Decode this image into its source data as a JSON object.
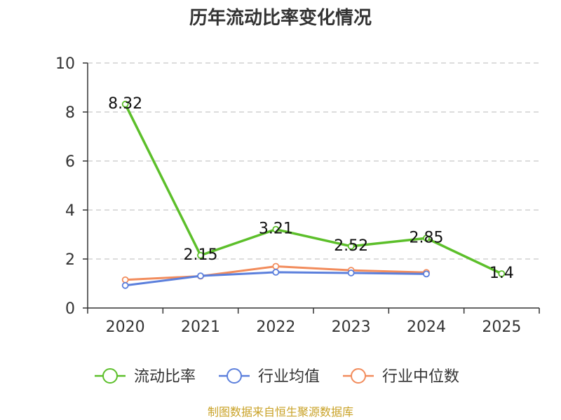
{
  "chart_data": {
    "type": "line",
    "title": "历年流动比率变化情况",
    "categories": [
      "2020",
      "2021",
      "2022",
      "2023",
      "2024",
      "2025"
    ],
    "ylim": [
      0,
      10
    ],
    "yticks": [
      0,
      2,
      4,
      6,
      8,
      10
    ],
    "grid": true,
    "legend_position": "bottom",
    "series": [
      {
        "name": "流动比率",
        "color": "#5cbf2a",
        "values": [
          8.32,
          2.15,
          3.21,
          2.52,
          2.85,
          1.4
        ],
        "labels": [
          "8.32",
          "2.15",
          "3.21",
          "2.52",
          "2.85",
          "1.4"
        ]
      },
      {
        "name": "行业均值",
        "color": "#5b7fdc",
        "values": [
          0.92,
          1.31,
          1.46,
          1.43,
          1.39,
          null
        ]
      },
      {
        "name": "行业中位数",
        "color": "#f28c5c",
        "values": [
          1.15,
          1.3,
          1.7,
          1.54,
          1.45,
          null
        ]
      }
    ],
    "source": "制图数据来自恒生聚源数据库",
    "source_color": "#c9a227"
  }
}
